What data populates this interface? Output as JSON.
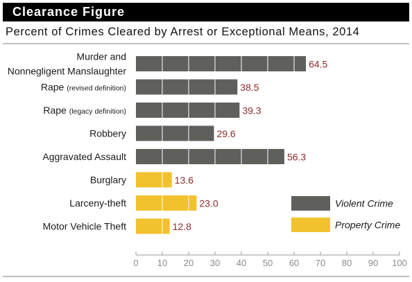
{
  "header": {
    "banner": "Clearance Figure",
    "subtitle": "Percent of Crimes Cleared by Arrest or Exceptional Means, 2014"
  },
  "colors": {
    "violent": "#5f5f5c",
    "property": "#f2c12e",
    "value_label": "#8b2a2a",
    "axis_text": "#8a8a8a"
  },
  "chart_data": {
    "type": "bar",
    "orientation": "horizontal",
    "title": "Percent of Crimes Cleared by Arrest or Exceptional Means, 2014",
    "categories": [
      "Murder and Nonnegligent Manslaughter",
      "Rape (revised definition)",
      "Rape (legacy definition)",
      "Robbery",
      "Aggravated Assault",
      "Burglary",
      "Larceny-theft",
      "Motor Vehicle Theft"
    ],
    "category_labels": [
      {
        "lines": [
          [
            {
              "text": "Murder and",
              "small": false
            }
          ],
          [
            {
              "text": "Nonnegligent Manslaughter",
              "small": false
            }
          ]
        ]
      },
      {
        "lines": [
          [
            {
              "text": "Rape ",
              "small": false
            },
            {
              "text": "(revised definition)",
              "small": true
            }
          ]
        ]
      },
      {
        "lines": [
          [
            {
              "text": "Rape ",
              "small": false
            },
            {
              "text": "(legacy definition)",
              "small": true
            }
          ]
        ]
      },
      {
        "lines": [
          [
            {
              "text": "Robbery",
              "small": false
            }
          ]
        ]
      },
      {
        "lines": [
          [
            {
              "text": "Aggravated Assault",
              "small": false
            }
          ]
        ]
      },
      {
        "lines": [
          [
            {
              "text": "Burglary",
              "small": false
            }
          ]
        ]
      },
      {
        "lines": [
          [
            {
              "text": "Larceny-theft",
              "small": false
            }
          ]
        ]
      },
      {
        "lines": [
          [
            {
              "text": "Motor Vehicle Theft",
              "small": false
            }
          ]
        ]
      }
    ],
    "values": [
      64.5,
      38.5,
      39.3,
      29.6,
      56.3,
      13.6,
      23.0,
      12.8
    ],
    "value_labels": [
      "64.5",
      "38.5",
      "39.3",
      "29.6",
      "56.3",
      "13.6",
      "23.0",
      "12.8"
    ],
    "groups": [
      "violent",
      "violent",
      "violent",
      "violent",
      "violent",
      "property",
      "property",
      "property"
    ],
    "xlim": [
      0,
      100
    ],
    "xticks": [
      0,
      10,
      20,
      30,
      40,
      50,
      60,
      70,
      80,
      90,
      100
    ],
    "gridlines_inside_bars": true,
    "legend": [
      {
        "key": "violent",
        "label": "Violent Crime"
      },
      {
        "key": "property",
        "label": "Property Crime"
      }
    ],
    "legend_position": "bottom-right",
    "xlabel": "",
    "ylabel": ""
  }
}
